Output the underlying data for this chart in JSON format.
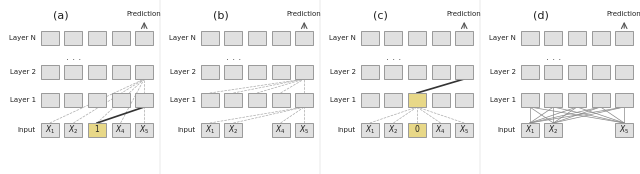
{
  "panels": [
    "(a)",
    "(b)",
    "(c)",
    "(d)"
  ],
  "bg_color": "#ffffff",
  "box_facecolor": "#e0e0e0",
  "box_edgecolor": "#999999",
  "highlight_color": "#e8d888",
  "line_color_dashed": "#999999",
  "line_color_solid": "#444444",
  "arrow_color": "#555555",
  "label_color": "#222222",
  "dot_color": "#555555"
}
